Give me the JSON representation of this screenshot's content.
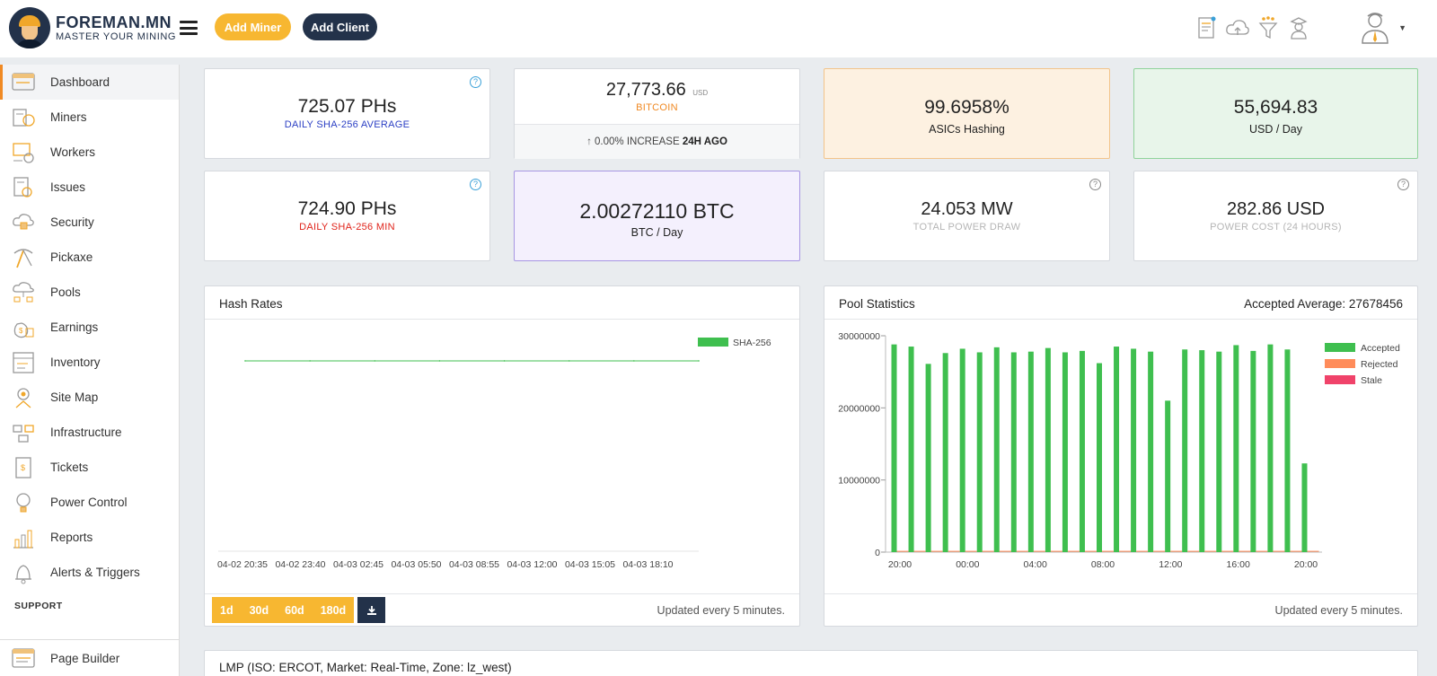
{
  "brand": {
    "title": "FOREMAN.MN",
    "subtitle": "MASTER YOUR MINING"
  },
  "header": {
    "add_miner": "Add Miner",
    "add_client": "Add Client"
  },
  "sidebar": {
    "items": [
      {
        "label": "Dashboard",
        "icon": "dashboard-icon"
      },
      {
        "label": "Miners",
        "icon": "miners-icon"
      },
      {
        "label": "Workers",
        "icon": "workers-icon"
      },
      {
        "label": "Issues",
        "icon": "issues-icon"
      },
      {
        "label": "Security",
        "icon": "security-icon"
      },
      {
        "label": "Pickaxe",
        "icon": "pickaxe-icon"
      },
      {
        "label": "Pools",
        "icon": "pools-icon"
      },
      {
        "label": "Earnings",
        "icon": "earnings-icon"
      },
      {
        "label": "Inventory",
        "icon": "inventory-icon"
      },
      {
        "label": "Site Map",
        "icon": "site-map-icon"
      },
      {
        "label": "Infrastructure",
        "icon": "infrastructure-icon"
      },
      {
        "label": "Tickets",
        "icon": "tickets-icon"
      },
      {
        "label": "Power Control",
        "icon": "power-control-icon"
      },
      {
        "label": "Reports",
        "icon": "reports-icon"
      },
      {
        "label": "Alerts & Triggers",
        "icon": "alerts-icon"
      }
    ],
    "support_label": "SUPPORT",
    "bottom_item": "Page Builder"
  },
  "stats": {
    "daily_avg_value": "725.07 PHs",
    "daily_avg_label": "DAILY SHA-256 AVERAGE",
    "btc_price_value": "27,773.66",
    "btc_price_unit": "USD",
    "btc_label": "BITCOIN",
    "btc_change_arrow": "↑",
    "btc_change_text": "0.00% INCREASE",
    "btc_change_period": "24H AGO",
    "asics_value": "99.6958%",
    "asics_label": "ASICs Hashing",
    "usd_day_value": "55,694.83",
    "usd_day_label": "USD / Day",
    "daily_min_value": "724.90 PHs",
    "daily_min_label": "DAILY SHA-256 MIN",
    "btc_day_value": "2.00272110 BTC",
    "btc_day_label": "BTC / Day",
    "power_value": "24.053 MW",
    "power_label": "TOTAL POWER DRAW",
    "cost_value": "282.86 USD",
    "cost_label": "POWER COST (24 HOURS)",
    "help_glyph": "?"
  },
  "hash_panel": {
    "title": "Hash Rates",
    "ranges": [
      "1d",
      "30d",
      "60d",
      "180d"
    ],
    "updated": "Updated every 5 minutes."
  },
  "pool_panel": {
    "title": "Pool Statistics",
    "accepted_avg": "Accepted Average: 27678456",
    "updated": "Updated every 5 minutes."
  },
  "lmp_panel": {
    "title": "LMP (ISO: ERCOT, Market: Real-Time, Zone: lz_west)"
  },
  "colors": {
    "accent": "#f7b731",
    "navy": "#23324a",
    "accepted": "#3fbf4f",
    "rejected": "#ff8c5a",
    "stale": "#f0436a"
  },
  "chart_data": [
    {
      "type": "line",
      "title": "Hash Rates",
      "x": [
        "04-02 20:35",
        "04-02 23:40",
        "04-03 02:45",
        "04-03 05:50",
        "04-03 08:55",
        "04-03 12:00",
        "04-03 15:05",
        "04-03 18:10"
      ],
      "series": [
        {
          "name": "SHA-256",
          "values": [
            725,
            725,
            725,
            725,
            725,
            725,
            725,
            725
          ]
        }
      ],
      "legend": "top-right"
    },
    {
      "type": "bar",
      "title": "Pool Statistics",
      "x_ticks": [
        "20:00",
        "00:00",
        "04:00",
        "08:00",
        "12:00",
        "16:00",
        "20:00"
      ],
      "y_ticks": [
        "0",
        "10000000",
        "20000000",
        "30000000"
      ],
      "ylim": [
        0,
        30000000
      ],
      "series": [
        {
          "name": "Accepted",
          "values": [
            28800000,
            28500000,
            26100000,
            27600000,
            28200000,
            27700000,
            28400000,
            27700000,
            27800000,
            28300000,
            27700000,
            27900000,
            26200000,
            28500000,
            28200000,
            27800000,
            21000000,
            28100000,
            28000000,
            27800000,
            28700000,
            27900000,
            28800000,
            28100000,
            12300000
          ]
        },
        {
          "name": "Rejected",
          "values": [
            50000,
            50000,
            50000,
            50000,
            50000,
            50000,
            50000,
            50000,
            50000,
            50000,
            50000,
            50000,
            50000,
            50000,
            50000,
            50000,
            50000,
            50000,
            50000,
            50000,
            50000,
            50000,
            50000,
            50000,
            50000
          ]
        },
        {
          "name": "Stale",
          "values": [
            0,
            0,
            0,
            0,
            0,
            0,
            0,
            0,
            0,
            0,
            0,
            0,
            0,
            0,
            0,
            0,
            0,
            0,
            0,
            0,
            0,
            0,
            0,
            0,
            0
          ]
        }
      ],
      "legend": "top-right"
    }
  ]
}
